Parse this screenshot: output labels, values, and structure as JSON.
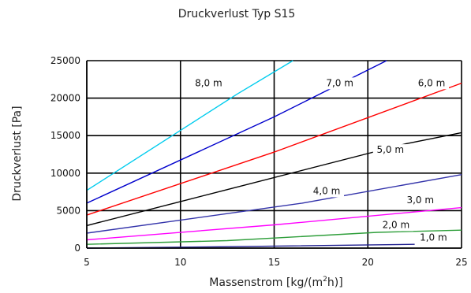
{
  "chart_data": {
    "type": "line",
    "title": "Druckverlust Typ S15",
    "xlabel": "Massenstrom [kg/(m",
    "xlabel_sup": "2",
    "xlabel_end": "h)]",
    "ylabel": "Druckverlust [Pa]",
    "xlim": [
      5,
      25
    ],
    "ylim": [
      0,
      25000
    ],
    "xticks": [
      5,
      10,
      15,
      20,
      25
    ],
    "yticks": [
      0,
      5000,
      10000,
      15000,
      20000,
      25000
    ],
    "grid": true,
    "series": [
      {
        "name": "1,0 m",
        "color": "#1f1f8f",
        "points": [
          [
            5,
            0
          ],
          [
            13,
            200
          ],
          [
            22.5,
            500
          ]
        ],
        "label_at": [
          23.5,
          1000
        ]
      },
      {
        "name": "2,0 m",
        "color": "#2e9e3a",
        "points": [
          [
            5,
            500
          ],
          [
            12.5,
            1000
          ],
          [
            20.5,
            2100
          ],
          [
            25,
            2400
          ]
        ],
        "label_at": [
          21.5,
          2700
        ]
      },
      {
        "name": "3,0 m",
        "color": "#ff00ff",
        "points": [
          [
            5,
            1100
          ],
          [
            15,
            3100
          ],
          [
            25,
            5400
          ]
        ],
        "label_at": [
          22.8,
          6000
        ]
      },
      {
        "name": "4,0 m",
        "color": "#3333aa",
        "points": [
          [
            5,
            2000
          ],
          [
            16.5,
            6000
          ],
          [
            25,
            9800
          ]
        ],
        "label_at": [
          17.8,
          7200
        ]
      },
      {
        "name": "5,0 m",
        "color": "#000000",
        "points": [
          [
            5,
            3000
          ],
          [
            12.5,
            7800
          ],
          [
            22,
            13900
          ],
          [
            25,
            15400
          ]
        ],
        "label_at": [
          21.2,
          12700
        ]
      },
      {
        "name": "6,0 m",
        "color": "#ff0000",
        "points": [
          [
            5,
            4400
          ],
          [
            15,
            12800
          ],
          [
            25,
            22000
          ]
        ],
        "label_at": [
          23.4,
          21600
        ]
      },
      {
        "name": "7,0 m",
        "color": "#0000cc",
        "points": [
          [
            5,
            6000
          ],
          [
            15,
            17500
          ],
          [
            21,
            25000
          ]
        ],
        "label_at": [
          18.5,
          21600
        ]
      },
      {
        "name": "8,0 m",
        "color": "#00ccee",
        "points": [
          [
            5,
            7700
          ],
          [
            13,
            20500
          ],
          [
            16,
            25000
          ]
        ],
        "label_at": [
          11.5,
          21600
        ]
      }
    ]
  }
}
